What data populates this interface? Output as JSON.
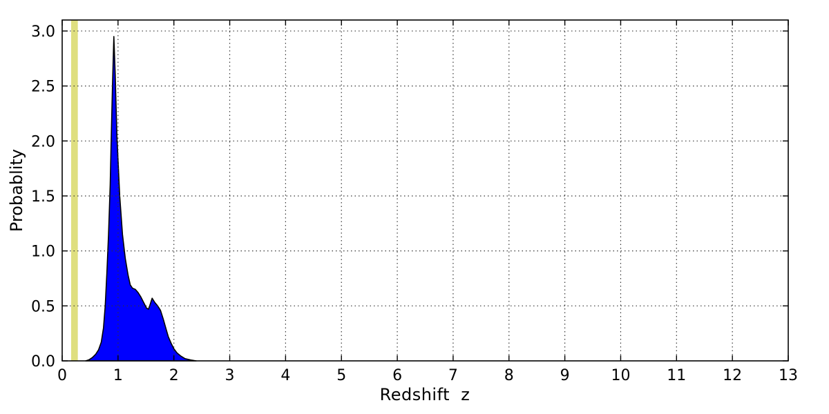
{
  "chart_data": {
    "type": "area",
    "title": "",
    "xlabel": "Redshift  z",
    "ylabel": "Probablity",
    "xlim": [
      0,
      13
    ],
    "ylim": [
      0,
      3.1
    ],
    "xticks": [
      0,
      1,
      2,
      3,
      4,
      5,
      6,
      7,
      8,
      9,
      10,
      11,
      12,
      13
    ],
    "xtick_labels": [
      "0",
      "1",
      "2",
      "3",
      "4",
      "5",
      "6",
      "7",
      "8",
      "9",
      "10",
      "11",
      "12",
      "13"
    ],
    "yticks": [
      0,
      0.5,
      1.0,
      1.5,
      2.0,
      2.5,
      3.0
    ],
    "ytick_labels": [
      "0.0",
      "0.5",
      "1.0",
      "1.5",
      "2.0",
      "2.5",
      "3.0"
    ],
    "grid": {
      "on": true,
      "style": "dotted",
      "color": "#333333",
      "above_data": true
    },
    "frame_color": "#000000",
    "background_color": "#ffffff",
    "series": [
      {
        "name": "redshift-probability-density",
        "kind": "filled-area",
        "fill_color": "#0000ff",
        "edge_color": "#000000",
        "peak": {
          "x": 0.925,
          "y": 2.95
        },
        "points": [
          [
            0.42,
            0.0
          ],
          [
            0.48,
            0.01
          ],
          [
            0.54,
            0.03
          ],
          [
            0.6,
            0.06
          ],
          [
            0.65,
            0.1
          ],
          [
            0.7,
            0.17
          ],
          [
            0.74,
            0.3
          ],
          [
            0.77,
            0.5
          ],
          [
            0.8,
            0.8
          ],
          [
            0.83,
            1.15
          ],
          [
            0.86,
            1.6
          ],
          [
            0.88,
            2.05
          ],
          [
            0.9,
            2.5
          ],
          [
            0.925,
            2.95
          ],
          [
            0.95,
            2.6
          ],
          [
            0.98,
            2.05
          ],
          [
            1.03,
            1.5
          ],
          [
            1.08,
            1.15
          ],
          [
            1.13,
            0.93
          ],
          [
            1.18,
            0.78
          ],
          [
            1.22,
            0.69
          ],
          [
            1.26,
            0.66
          ],
          [
            1.31,
            0.65
          ],
          [
            1.36,
            0.62
          ],
          [
            1.41,
            0.58
          ],
          [
            1.46,
            0.53
          ],
          [
            1.51,
            0.48
          ],
          [
            1.545,
            0.47
          ],
          [
            1.58,
            0.52
          ],
          [
            1.61,
            0.57
          ],
          [
            1.66,
            0.53
          ],
          [
            1.71,
            0.5
          ],
          [
            1.76,
            0.46
          ],
          [
            1.81,
            0.38
          ],
          [
            1.86,
            0.29
          ],
          [
            1.9,
            0.22
          ],
          [
            1.95,
            0.16
          ],
          [
            2.0,
            0.11
          ],
          [
            2.06,
            0.07
          ],
          [
            2.12,
            0.045
          ],
          [
            2.2,
            0.02
          ],
          [
            2.3,
            0.008
          ],
          [
            2.4,
            0.0
          ]
        ]
      }
    ],
    "annotations": [
      {
        "name": "reference-redshift-band",
        "kind": "vertical-band",
        "x_min": 0.16,
        "x_max": 0.28,
        "color": "#dfdf7f"
      }
    ]
  }
}
